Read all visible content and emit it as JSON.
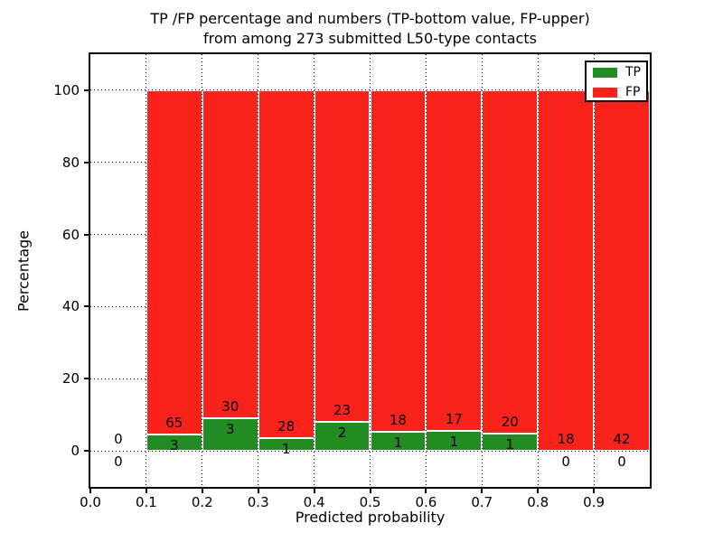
{
  "title": {
    "line1": "TP /FP percentage and numbers (TP-bottom value, FP-upper)",
    "line2": "from among 273 submitted L50-type contacts"
  },
  "axes": {
    "xlabel": "Predicted probability",
    "ylabel": "Percentage",
    "ytick_values": [
      0,
      20,
      40,
      60,
      80,
      100
    ],
    "ytick_labels": [
      "0",
      "20",
      "40",
      "60",
      "80",
      "100"
    ],
    "xtick_values": [
      0.0,
      0.1,
      0.2,
      0.3,
      0.4,
      0.5,
      0.6,
      0.7,
      0.8,
      0.9
    ],
    "xtick_labels": [
      "0.0",
      "0.1",
      "0.2",
      "0.3",
      "0.4",
      "0.5",
      "0.6",
      "0.7",
      "0.8",
      "0.9"
    ]
  },
  "legend": {
    "items": [
      {
        "label": "TP",
        "color": "#228b22"
      },
      {
        "label": "FP",
        "color": "#fa231b"
      }
    ]
  },
  "colors": {
    "tp": "#228b22",
    "fp": "#fa231b",
    "bar_edge": "#ffffff",
    "grid": "#000000",
    "text": "#000000",
    "background": "#ffffff"
  },
  "chart_data": {
    "type": "bar",
    "stacked": true,
    "title": "TP /FP percentage and numbers (TP-bottom value, FP-upper) from among 273 submitted L50-type contacts",
    "xlabel": "Predicted probability",
    "ylabel": "Percentage",
    "xlim": [
      0.0,
      1.0
    ],
    "ylim": [
      -10,
      110
    ],
    "grid": "dotted, both axes",
    "legend_position": "upper right",
    "total_submitted_contacts": 273,
    "note": "Each bin stacked to 100%; annotations are raw counts: TP count at bottom, FP count above the TP segment; bins with no contacts or zero TP show 0 below the baseline",
    "bins": [
      {
        "x_range": [
          0.0,
          0.1
        ],
        "tp_count": 0,
        "fp_count": 0,
        "tp_pct": 0,
        "fp_pct": 0
      },
      {
        "x_range": [
          0.1,
          0.2
        ],
        "tp_count": 3,
        "fp_count": 65,
        "tp_pct": 4.41,
        "fp_pct": 95.59
      },
      {
        "x_range": [
          0.2,
          0.3
        ],
        "tp_count": 3,
        "fp_count": 30,
        "tp_pct": 9.09,
        "fp_pct": 90.91
      },
      {
        "x_range": [
          0.3,
          0.4
        ],
        "tp_count": 1,
        "fp_count": 28,
        "tp_pct": 3.45,
        "fp_pct": 96.55
      },
      {
        "x_range": [
          0.4,
          0.5
        ],
        "tp_count": 2,
        "fp_count": 23,
        "tp_pct": 8.0,
        "fp_pct": 92.0
      },
      {
        "x_range": [
          0.5,
          0.6
        ],
        "tp_count": 1,
        "fp_count": 18,
        "tp_pct": 5.26,
        "fp_pct": 94.74
      },
      {
        "x_range": [
          0.6,
          0.7
        ],
        "tp_count": 1,
        "fp_count": 17,
        "tp_pct": 5.56,
        "fp_pct": 94.44
      },
      {
        "x_range": [
          0.7,
          0.8
        ],
        "tp_count": 1,
        "fp_count": 20,
        "tp_pct": 4.76,
        "fp_pct": 95.24
      },
      {
        "x_range": [
          0.8,
          0.9
        ],
        "tp_count": 0,
        "fp_count": 18,
        "tp_pct": 0,
        "fp_pct": 100
      },
      {
        "x_range": [
          0.9,
          1.0
        ],
        "tp_count": 0,
        "fp_count": 42,
        "tp_pct": 0,
        "fp_pct": 100
      }
    ],
    "series": [
      {
        "name": "TP",
        "color": "#228b22",
        "counts": [
          0,
          3,
          3,
          1,
          2,
          1,
          1,
          1,
          0,
          0
        ]
      },
      {
        "name": "FP",
        "color": "#fa231b",
        "counts": [
          0,
          65,
          30,
          28,
          23,
          18,
          17,
          20,
          18,
          42
        ]
      }
    ]
  }
}
